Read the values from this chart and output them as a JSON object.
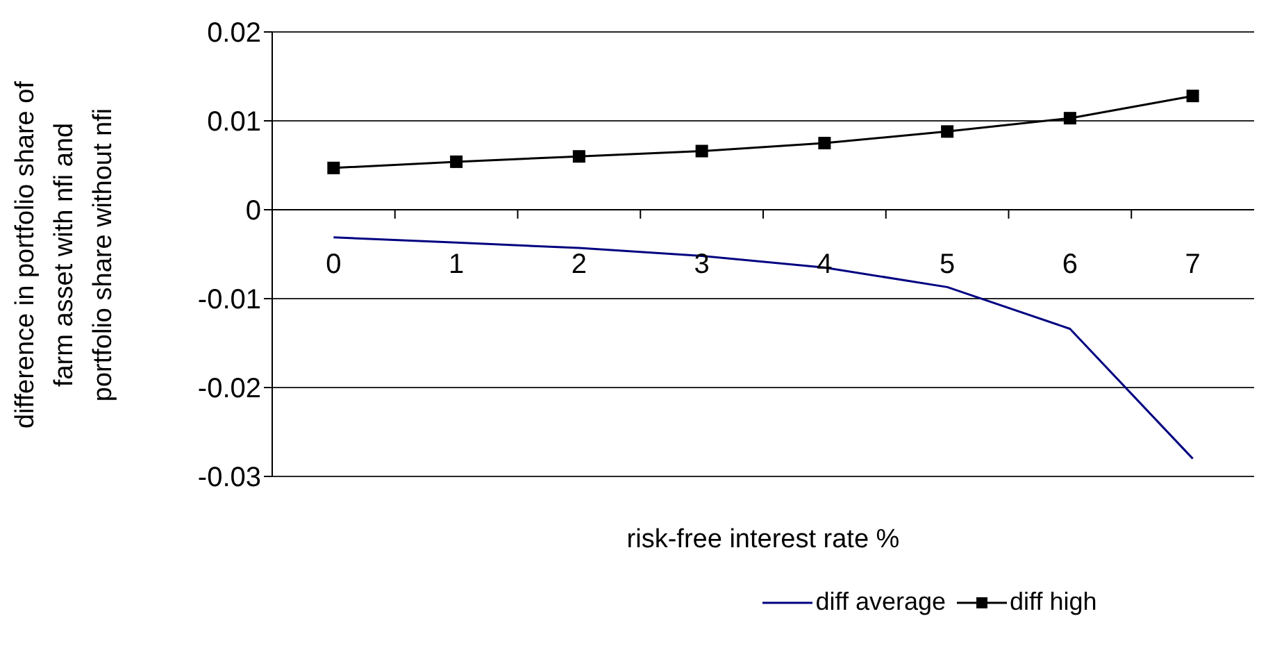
{
  "chart_data": {
    "type": "line",
    "xlabel": "risk-free interest rate %",
    "ylabel": "difference in portfolio share of farm asset with nfi and portfolio share without nfi",
    "categories": [
      "0",
      "1",
      "2",
      "3",
      "4",
      "5",
      "6",
      "7"
    ],
    "series": [
      {
        "name": "diff average",
        "color": "#000080",
        "marker": "none",
        "values": [
          -0.0031,
          -0.0037,
          -0.0043,
          -0.0052,
          -0.0065,
          -0.0087,
          -0.0134,
          -0.028
        ]
      },
      {
        "name": "diff high",
        "color": "#000000",
        "marker": "square",
        "values": [
          0.0047,
          0.0054,
          0.006,
          0.0066,
          0.0075,
          0.0088,
          0.0103,
          0.0128
        ]
      }
    ],
    "ylim": [
      -0.03,
      0.02
    ],
    "yticks": [
      -0.03,
      -0.02,
      -0.01,
      0,
      0.01,
      0.02
    ],
    "grid": "y",
    "legend": "bottom"
  }
}
